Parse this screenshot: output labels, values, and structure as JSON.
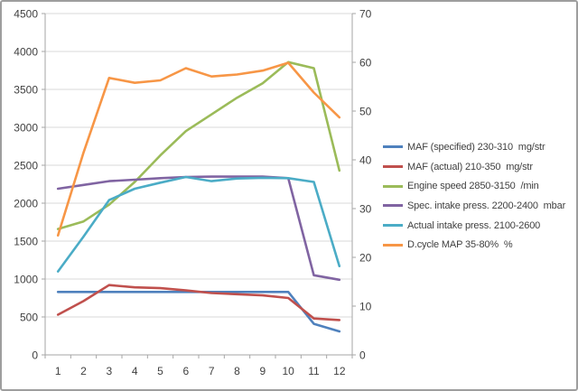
{
  "chart_data": {
    "type": "line",
    "title": "",
    "grid": true,
    "legend_position": "right",
    "categories": [
      "1",
      "2",
      "3",
      "4",
      "5",
      "6",
      "7",
      "8",
      "9",
      "10",
      "11",
      "12"
    ],
    "left_axis": {
      "min": 0,
      "max": 4500,
      "step": 500
    },
    "right_axis": {
      "min": 0,
      "max": 70,
      "step": 10
    },
    "series": [
      {
        "id": "maf-specified",
        "label": "MAF (specified) 230-310  mg/str",
        "color": "#4F81BD",
        "axis": "left",
        "values": [
          830,
          830,
          830,
          830,
          830,
          830,
          830,
          830,
          830,
          830,
          410,
          310
        ]
      },
      {
        "id": "maf-actual",
        "label": "MAF (actual) 210-350  mg/str",
        "color": "#C0504D",
        "axis": "left",
        "values": [
          530,
          710,
          920,
          890,
          880,
          850,
          815,
          800,
          785,
          750,
          480,
          460
        ]
      },
      {
        "id": "engine-speed",
        "label": "Engine speed 2850-3150  /min",
        "color": "#9BBB59",
        "axis": "left",
        "values": [
          1660,
          1760,
          1980,
          2280,
          2630,
          2950,
          3170,
          3390,
          3580,
          3860,
          3780,
          2430
        ]
      },
      {
        "id": "spec-intake-press",
        "label": "Spec. intake press. 2200-2400  mbar",
        "color": "#8064A2",
        "axis": "left",
        "values": [
          2190,
          2240,
          2290,
          2310,
          2330,
          2345,
          2350,
          2350,
          2350,
          2330,
          1050,
          990
        ]
      },
      {
        "id": "actual-intake-press",
        "label": "Actual intake press. 2100-2600",
        "color": "#4BACC6",
        "axis": "left",
        "values": [
          1100,
          1560,
          2040,
          2190,
          2270,
          2345,
          2290,
          2325,
          2335,
          2330,
          2280,
          1170
        ]
      },
      {
        "id": "dcycle-map",
        "label": "D.cycle MAP 35-80%  %",
        "color": "#F79646",
        "axis": "right",
        "values": [
          24.5,
          41.5,
          56.8,
          55.8,
          56.3,
          58.8,
          57.1,
          57.5,
          58.3,
          59.9,
          53.8,
          48.7
        ]
      }
    ],
    "colors": {
      "gridline": "#D9D9D9",
      "axis_line": "#A6A6A6",
      "tick_text": "#404040",
      "frame_border": "#9E9E9E"
    }
  }
}
